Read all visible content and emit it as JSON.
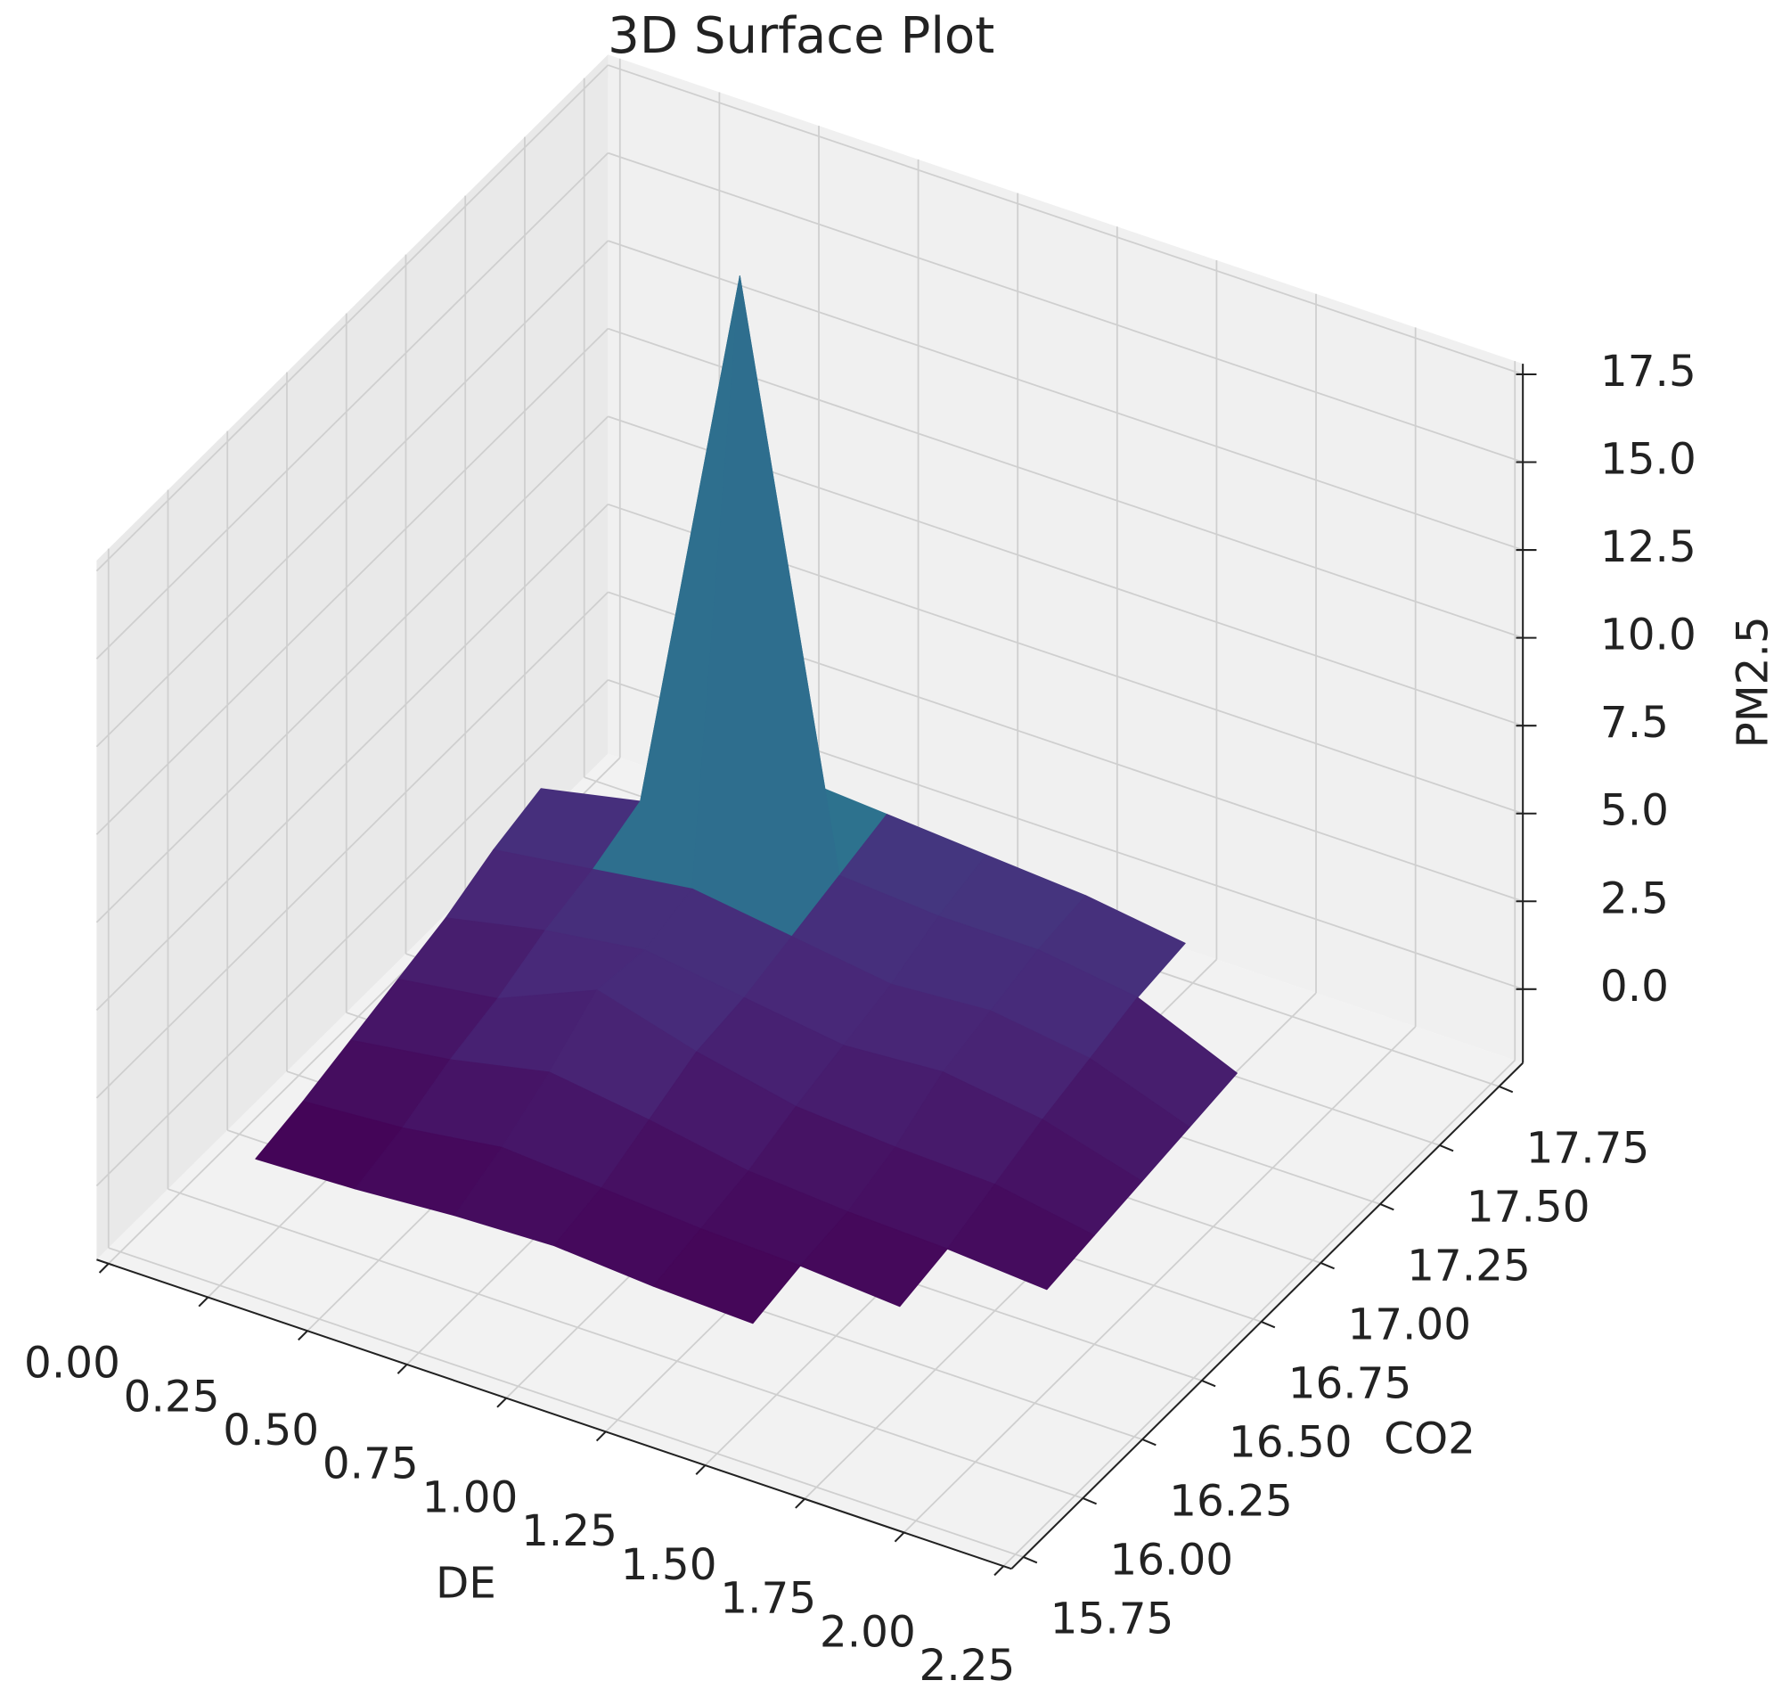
{
  "chart_data": {
    "type": "surface",
    "title": "3D Surface Plot",
    "x_label": "DE",
    "y_label": "CO2",
    "z_label": "PM2.5",
    "colormap": "viridis",
    "grid": true,
    "xlim": [
      -0.03,
      2.27
    ],
    "ylim": [
      15.7,
      17.85
    ],
    "zlim": [
      -2.1,
      17.8
    ],
    "xticks": [
      {
        "value": 0,
        "label": "0.00"
      },
      0.25,
      {
        "value": 0.5,
        "label": "0.50"
      },
      0.75,
      {
        "value": 1,
        "label": "1.00"
      },
      1.25,
      {
        "value": 1.5,
        "label": "1.50"
      },
      1.75,
      {
        "value": 2,
        "label": "2.00"
      },
      2.25
    ],
    "yticks": [
      15.75,
      {
        "value": 16,
        "label": "16.00"
      },
      16.25,
      {
        "value": 16.5,
        "label": "16.50"
      },
      16.75,
      {
        "value": 17,
        "label": "17.00"
      },
      17.25,
      {
        "value": 17.5,
        "label": "17.50"
      },
      17.75
    ],
    "zticks": [
      {
        "value": 0,
        "label": "0.0"
      },
      2.5,
      {
        "value": 5,
        "label": "5.0"
      },
      7.5,
      {
        "value": 10,
        "label": "10.0"
      },
      12.5,
      {
        "value": 15,
        "label": "15.0"
      },
      17.5
    ],
    "x": [
      0.25,
      0.5,
      0.75,
      1.0,
      1.25,
      1.5,
      1.75,
      2.0
    ],
    "y": [
      15.9,
      16.1,
      16.3,
      16.5,
      16.7,
      16.9,
      17.1,
      17.3
    ],
    "z": [
      [
        0.5,
        0.6,
        0.8,
        0.9,
        0.7,
        0.6,
        null,
        null
      ],
      [
        0.8,
        1.0,
        1.4,
        1.2,
        1.0,
        0.9,
        0.7,
        null
      ],
      [
        1.2,
        1.6,
        2.2,
        1.8,
        1.3,
        1.1,
        1.0,
        0.8
      ],
      [
        1.6,
        2.0,
        3.2,
        2.4,
        1.8,
        1.6,
        1.5,
        1.0
      ],
      [
        2.0,
        2.6,
        3.0,
        2.6,
        2.2,
        2.4,
        2.0,
        1.2
      ],
      [
        2.6,
        3.0,
        3.4,
        3.0,
        2.6,
        2.8,
        2.4,
        1.4
      ],
      [
        3.0,
        3.6,
        19.5,
        3.4,
        3.2,
        3.2,
        2.8,
        1.6
      ],
      [
        null,
        3.8,
        4.0,
        3.8,
        3.6,
        3.4,
        3.0,
        null
      ]
    ]
  }
}
